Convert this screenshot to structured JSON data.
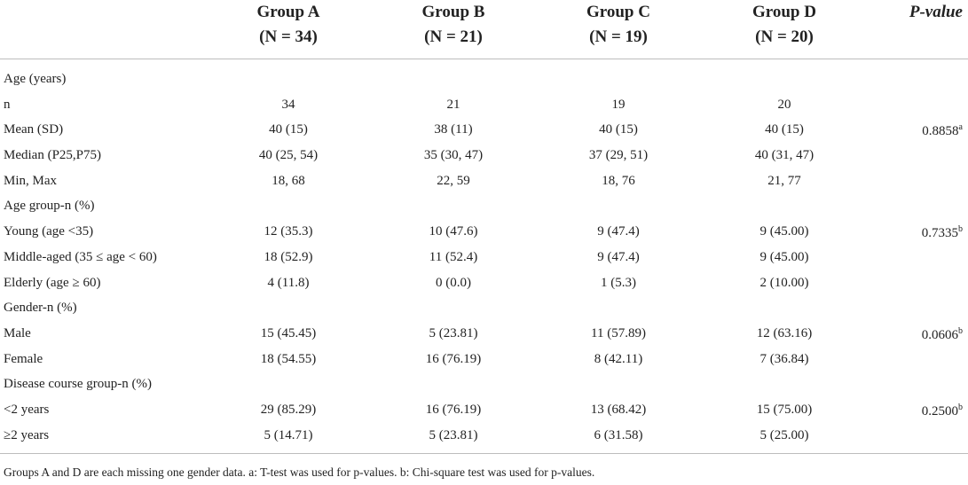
{
  "header": {
    "group_a": "Group A",
    "group_a_n": "(N = 34)",
    "group_b": "Group B",
    "group_b_n": "(N = 21)",
    "group_c": "Group C",
    "group_c_n": "(N = 19)",
    "group_d": "Group D",
    "group_d_n": "(N = 20)",
    "pvalue": "P-value"
  },
  "rows": [
    {
      "label": "Age (years)",
      "a": "",
      "b": "",
      "c": "",
      "d": "",
      "p": "",
      "p_sup": ""
    },
    {
      "label": "n",
      "a": "34",
      "b": "21",
      "c": "19",
      "d": "20",
      "p": "",
      "p_sup": ""
    },
    {
      "label": "Mean (SD)",
      "a": "40 (15)",
      "b": "38 (11)",
      "c": "40 (15)",
      "d": "40 (15)",
      "p": "0.8858",
      "p_sup": "a"
    },
    {
      "label": "Median (P25,P75)",
      "a": "40 (25, 54)",
      "b": "35 (30, 47)",
      "c": "37 (29, 51)",
      "d": "40 (31, 47)",
      "p": "",
      "p_sup": ""
    },
    {
      "label": "Min, Max",
      "a": "18, 68",
      "b": "22, 59",
      "c": "18, 76",
      "d": "21, 77",
      "p": "",
      "p_sup": ""
    },
    {
      "label": "Age group-n (%)",
      "a": "",
      "b": "",
      "c": "",
      "d": "",
      "p": "",
      "p_sup": ""
    },
    {
      "label": "Young (age <35)",
      "a": "12 (35.3)",
      "b": "10 (47.6)",
      "c": "9 (47.4)",
      "d": "9 (45.00)",
      "p": "0.7335",
      "p_sup": "b"
    },
    {
      "label": "Middle-aged (35 ≤ age < 60)",
      "a": "18 (52.9)",
      "b": "11 (52.4)",
      "c": "9 (47.4)",
      "d": "9 (45.00)",
      "p": "",
      "p_sup": ""
    },
    {
      "label": "Elderly (age ≥ 60)",
      "a": "4 (11.8)",
      "b": "0 (0.0)",
      "c": "1 (5.3)",
      "d": "2 (10.00)",
      "p": "",
      "p_sup": ""
    },
    {
      "label": "Gender-n (%)",
      "a": "",
      "b": "",
      "c": "",
      "d": "",
      "p": "",
      "p_sup": ""
    },
    {
      "label": "Male",
      "a": "15 (45.45)",
      "b": "5 (23.81)",
      "c": "11 (57.89)",
      "d": "12 (63.16)",
      "p": "0.0606",
      "p_sup": "b"
    },
    {
      "label": "Female",
      "a": "18 (54.55)",
      "b": "16 (76.19)",
      "c": "8 (42.11)",
      "d": "7 (36.84)",
      "p": "",
      "p_sup": ""
    },
    {
      "label": "Disease course group-n (%)",
      "a": "",
      "b": "",
      "c": "",
      "d": "",
      "p": "",
      "p_sup": ""
    },
    {
      "label": "<2 years",
      "a": "29 (85.29)",
      "b": "16 (76.19)",
      "c": "13 (68.42)",
      "d": "15 (75.00)",
      "p": "0.2500",
      "p_sup": "b"
    },
    {
      "label": "≥2 years",
      "a": "5 (14.71)",
      "b": "5 (23.81)",
      "c": "6 (31.58)",
      "d": "5 (25.00)",
      "p": "",
      "p_sup": ""
    }
  ],
  "footnote": "Groups A and D are each missing one gender data. a: T-test was used for p-values. b: Chi-square test was used for p-values."
}
